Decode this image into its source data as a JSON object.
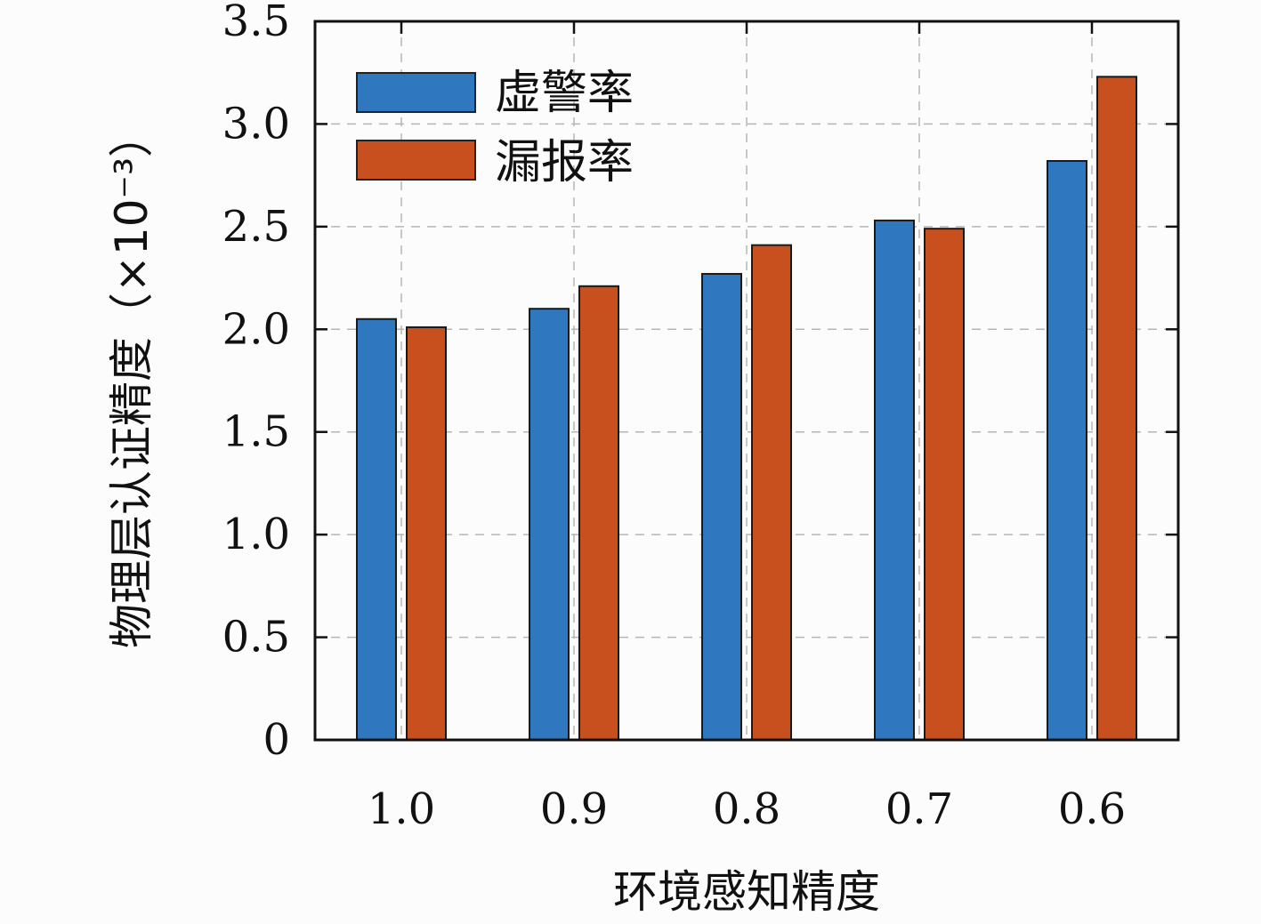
{
  "chart_data": {
    "type": "bar",
    "categories": [
      "1.0",
      "0.9",
      "0.8",
      "0.7",
      "0.6"
    ],
    "series": [
      {
        "name": "虚警率",
        "values": [
          2.05,
          2.1,
          2.27,
          2.53,
          2.82
        ]
      },
      {
        "name": "漏报率",
        "values": [
          2.01,
          2.21,
          2.41,
          2.49,
          3.23
        ]
      }
    ],
    "xlabel": "环境感知精度",
    "ylabel": "物理层认证精度（×10⁻³）",
    "ylim": [
      0,
      3.5
    ],
    "yticks": [
      "0",
      "0.5",
      "1.0",
      "1.5",
      "2.0",
      "2.5",
      "3.0",
      "3.5"
    ],
    "grid": true,
    "legend_position": "top-left",
    "colors": [
      "#2f78bf",
      "#c8501e"
    ]
  }
}
